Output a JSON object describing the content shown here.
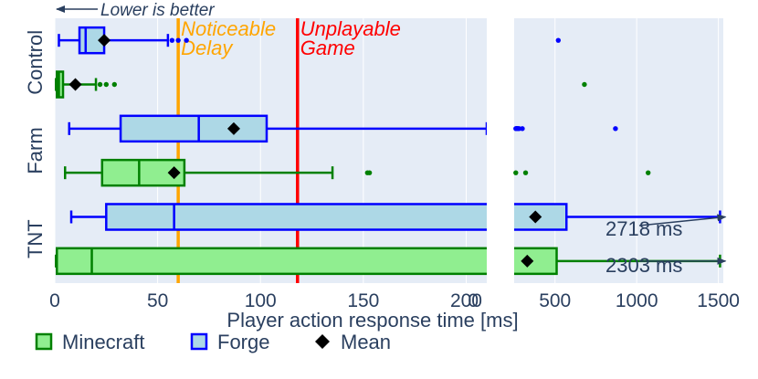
{
  "chart_data": {
    "type": "box",
    "xlabel": "Player action response time [ms]",
    "note": "Lower is better",
    "panels": [
      {
        "xlim": [
          0,
          210
        ],
        "ticks": [
          0,
          50,
          100,
          150,
          200
        ]
      },
      {
        "xlim": [
          250,
          1530
        ],
        "ticks": [
          0,
          500,
          1000,
          1500
        ]
      }
    ],
    "categories": [
      "Control",
      "Farm",
      "TNT"
    ],
    "thresholds": [
      {
        "value": 60,
        "label_line1": "Noticeable",
        "label_line2": "Delay",
        "color": "#ffa500"
      },
      {
        "value": 118,
        "label_line1": "Unplayable",
        "label_line2": "Game",
        "color": "#ff0000"
      }
    ],
    "series": [
      {
        "name": "Forge",
        "fill": "#add8e6",
        "line": "#0000ff",
        "boxes": [
          {
            "category": "Control",
            "min": 2,
            "q1": 12,
            "median": 15,
            "q3": 24,
            "max": 55,
            "mean": 24,
            "outliers": [
              57,
              60,
              64,
              520
            ]
          },
          {
            "category": "Farm",
            "min": 7,
            "q1": 32,
            "median": 70,
            "q3": 103,
            "max": 210,
            "mean": 87,
            "outliers": [
              260,
              263,
              265,
              268,
              270,
              275,
              280,
              300,
              870
            ]
          },
          {
            "category": "TNT",
            "min": 8,
            "q1": 25,
            "median": 58,
            "q3": 570,
            "max": 1510,
            "mean": 380,
            "outliers": []
          }
        ]
      },
      {
        "name": "Minecraft",
        "fill": "#90ee90",
        "line": "#008000",
        "boxes": [
          {
            "category": "Control",
            "min": 0.5,
            "q1": 1,
            "median": 2,
            "q3": 4,
            "max": 20,
            "mean": 10,
            "outliers": [
              22,
              25,
              29,
              680
            ]
          },
          {
            "category": "Farm",
            "min": 5,
            "q1": 23,
            "median": 41,
            "q3": 63,
            "max": 135,
            "mean": 58,
            "outliers": [
              152,
              153,
              260,
              320,
              1070
            ]
          },
          {
            "category": "TNT",
            "min": 0.5,
            "q1": 1,
            "median": 18,
            "q3": 510,
            "max": 1510,
            "mean": 330,
            "outliers": []
          }
        ]
      }
    ],
    "mean_label": "Mean",
    "annotations": [
      {
        "text": "2718 ms",
        "series": "Forge",
        "category": "TNT"
      },
      {
        "text": "2303 ms",
        "series": "Minecraft",
        "category": "TNT"
      }
    ],
    "legend": [
      "Minecraft",
      "Forge",
      "Mean"
    ],
    "grid": true,
    "orientation": "horizontal"
  }
}
